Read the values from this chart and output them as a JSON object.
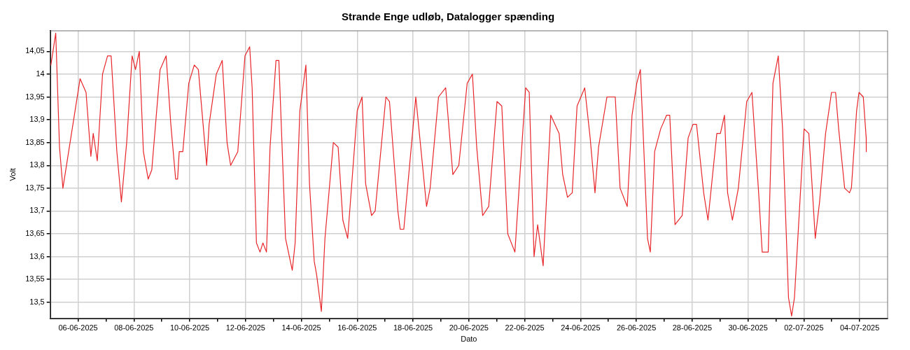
{
  "chart_data": {
    "type": "line",
    "title": "Strande Enge udløb, Datalogger spænding",
    "xlabel": "Dato",
    "ylabel": "Volt",
    "x": [
      "2025-06-05T00:36",
      "2025-06-05T04:45",
      "2025-06-05T08:00",
      "2025-06-05T10:55",
      "2025-06-06T01:42",
      "2025-06-06T06:49",
      "2025-06-06T10:57",
      "2025-06-06T13:00",
      "2025-06-06T16:29",
      "2025-06-06T21:00",
      "2025-06-07T01:18",
      "2025-06-07T04:23",
      "2025-06-07T09:19",
      "2025-06-07T13:12",
      "2025-06-07T17:45",
      "2025-06-07T22:26",
      "2025-06-08T01:20",
      "2025-06-08T04:36",
      "2025-06-08T08:07",
      "2025-06-08T12:15",
      "2025-06-08T15:20",
      "2025-06-08T22:29",
      "2025-06-09T03:40",
      "2025-06-09T07:43",
      "2025-06-09T11:51",
      "2025-06-09T13:31",
      "2025-06-09T14:56",
      "2025-06-09T18:01",
      "2025-06-09T23:08",
      "2025-06-10T03:53",
      "2025-06-10T07:23",
      "2025-06-10T11:27",
      "2025-06-10T14:32",
      "2025-06-10T16:38",
      "2025-06-10T22:48",
      "2025-06-11T03:55",
      "2025-06-11T08:03",
      "2025-06-11T11:08",
      "2025-06-11T17:17",
      "2025-06-11T23:27",
      "2025-06-12T03:31",
      "2025-06-12T05:37",
      "2025-06-12T09:19",
      "2025-06-12T12:24",
      "2025-06-12T14:52",
      "2025-06-12T17:57",
      "2025-06-12T21:02",
      "2025-06-13T02:08",
      "2025-06-13T04:36",
      "2025-06-13T10:20",
      "2025-06-13T16:08",
      "2025-06-13T18:36",
      "2025-06-13T22:40",
      "2025-06-14T03:51",
      "2025-06-14T06:56",
      "2025-06-14T11:00",
      "2025-06-14T13:05",
      "2025-06-14T17:09",
      "2025-06-14T20:14",
      "2025-06-15T03:26",
      "2025-06-15T07:34",
      "2025-06-15T11:38",
      "2025-06-15T15:46",
      "2025-06-16T00:00",
      "2025-06-16T04:07",
      "2025-06-16T07:12",
      "2025-06-16T12:19",
      "2025-06-16T15:24",
      "2025-06-17T00:38",
      "2025-06-17T03:43",
      "2025-06-17T10:56",
      "2025-06-17T12:57",
      "2025-06-17T16:02",
      "2025-06-18T02:20",
      "2025-06-18T11:35",
      "2025-06-18T14:40",
      "2025-06-18T21:52",
      "2025-06-19T04:02",
      "2025-06-19T10:12",
      "2025-06-19T15:19",
      "2025-06-19T22:31",
      "2025-06-20T03:01",
      "2025-06-20T06:43",
      "2025-06-20T11:50",
      "2025-06-20T17:01",
      "2025-06-21T00:10",
      "2025-06-21T04:17",
      "2025-06-21T09:24",
      "2025-06-21T15:33",
      "2025-06-22T00:48",
      "2025-06-22T03:53",
      "2025-06-22T08:01",
      "2025-06-22T11:06",
      "2025-06-22T15:50",
      "2025-06-22T22:22",
      "2025-06-23T05:34",
      "2025-06-23T08:39",
      "2025-06-23T12:47",
      "2025-06-23T16:51",
      "2025-06-23T21:00",
      "2025-06-24T03:35",
      "2025-06-24T08:16",
      "2025-06-24T12:24",
      "2025-06-24T15:29",
      "2025-06-24T22:41",
      "2025-06-25T05:50",
      "2025-06-25T10:00",
      "2025-06-25T16:08",
      "2025-06-25T20:16",
      "2025-06-26T00:20",
      "2025-06-26T03:25",
      "2025-06-26T05:31",
      "2025-06-26T09:35",
      "2025-06-26T12:00",
      "2025-06-26T15:42",
      "2025-06-26T20:53",
      "2025-06-27T02:00",
      "2025-06-27T04:41",
      "2025-06-27T09:13",
      "2025-06-27T15:23",
      "2025-06-27T20:30",
      "2025-06-28T00:38",
      "2025-06-28T03:43",
      "2025-06-28T09:52",
      "2025-06-28T13:34",
      "2025-06-28T21:10",
      "2025-06-29T00:14",
      "2025-06-29T03:46",
      "2025-06-29T06:26",
      "2025-06-29T10:34",
      "2025-06-29T15:40",
      "2025-06-29T22:52",
      "2025-06-30T03:22",
      "2025-06-30T09:07",
      "2025-06-30T12:11",
      "2025-06-30T17:22",
      "2025-06-30T21:26",
      "2025-07-01T02:00",
      "2025-07-01T05:42",
      "2025-07-01T10:48",
      "2025-07-01T13:28",
      "2025-07-01T15:55",
      "2025-07-02T00:11",
      "2025-07-02T04:16",
      "2025-07-02T06:44",
      "2025-07-02T09:49",
      "2025-07-02T13:31",
      "2025-07-02T18:40",
      "2025-07-02T23:47",
      "2025-07-03T03:17",
      "2025-07-03T05:56",
      "2025-07-03T11:05",
      "2025-07-03T15:13",
      "2025-07-03T16:52",
      "2025-07-03T21:22",
      "2025-07-03T23:24",
      "2025-07-04T03:06",
      "2025-07-04T05:36",
      "2025-07-04T05:40"
    ],
    "series": [
      {
        "color": "#e8262a",
        "values": [
          14.02,
          14.09,
          13.84,
          13.75,
          13.99,
          13.96,
          13.82,
          13.87,
          13.81,
          14.0,
          14.04,
          14.04,
          13.83,
          13.72,
          13.85,
          14.04,
          14.01,
          14.05,
          13.83,
          13.77,
          13.79,
          14.01,
          14.04,
          13.89,
          13.77,
          13.77,
          13.83,
          13.83,
          13.98,
          14.02,
          14.01,
          13.89,
          13.8,
          13.89,
          14.0,
          14.03,
          13.85,
          13.8,
          13.83,
          14.04,
          14.06,
          13.97,
          13.63,
          13.61,
          13.63,
          13.61,
          13.84,
          14.03,
          14.03,
          13.64,
          13.57,
          13.63,
          13.92,
          14.02,
          13.76,
          13.59,
          13.56,
          13.48,
          13.64,
          13.85,
          13.84,
          13.68,
          13.64,
          13.92,
          13.95,
          13.76,
          13.69,
          13.7,
          13.95,
          13.94,
          13.7,
          13.66,
          13.66,
          13.95,
          13.71,
          13.75,
          13.95,
          13.97,
          13.78,
          13.8,
          13.98,
          14.0,
          13.84,
          13.69,
          13.71,
          13.94,
          13.93,
          13.65,
          13.61,
          13.97,
          13.96,
          13.6,
          13.67,
          13.58,
          13.91,
          13.87,
          13.78,
          13.73,
          13.74,
          13.93,
          13.97,
          13.86,
          13.74,
          13.84,
          13.95,
          13.95,
          13.75,
          13.71,
          13.91,
          13.98,
          14.01,
          13.89,
          13.64,
          13.61,
          13.83,
          13.88,
          13.91,
          13.91,
          13.67,
          13.69,
          13.86,
          13.89,
          13.89,
          13.74,
          13.68,
          13.87,
          13.87,
          13.91,
          13.74,
          13.68,
          13.75,
          13.94,
          13.96,
          13.74,
          13.61,
          13.61,
          13.98,
          14.04,
          13.88,
          13.51,
          13.47,
          13.51,
          13.88,
          13.87,
          13.77,
          13.64,
          13.72,
          13.87,
          13.96,
          13.96,
          13.88,
          13.75,
          13.74,
          13.75,
          13.92,
          13.96,
          13.95,
          13.86,
          13.83
        ]
      }
    ],
    "xlim": [
      "2025-06-05",
      "2025-07-05"
    ],
    "xticks": [
      {
        "value": "2025-06-06",
        "label": "06-06-2025"
      },
      {
        "value": "2025-06-07",
        "label": null
      },
      {
        "value": "2025-06-08",
        "label": "08-06-2025"
      },
      {
        "value": "2025-06-09",
        "label": null
      },
      {
        "value": "2025-06-10",
        "label": "10-06-2025"
      },
      {
        "value": "2025-06-11",
        "label": null
      },
      {
        "value": "2025-06-12",
        "label": "12-06-2025"
      },
      {
        "value": "2025-06-13",
        "label": null
      },
      {
        "value": "2025-06-14",
        "label": "14-06-2025"
      },
      {
        "value": "2025-06-15",
        "label": null
      },
      {
        "value": "2025-06-16",
        "label": "16-06-2025"
      },
      {
        "value": "2025-06-17",
        "label": null
      },
      {
        "value": "2025-06-18",
        "label": "18-06-2025"
      },
      {
        "value": "2025-06-19",
        "label": null
      },
      {
        "value": "2025-06-20",
        "label": "20-06-2025"
      },
      {
        "value": "2025-06-21",
        "label": null
      },
      {
        "value": "2025-06-22",
        "label": "22-06-2025"
      },
      {
        "value": "2025-06-23",
        "label": null
      },
      {
        "value": "2025-06-24",
        "label": "24-06-2025"
      },
      {
        "value": "2025-06-25",
        "label": null
      },
      {
        "value": "2025-06-26",
        "label": "26-06-2025"
      },
      {
        "value": "2025-06-27",
        "label": null
      },
      {
        "value": "2025-06-28",
        "label": "28-06-2025"
      },
      {
        "value": "2025-06-29",
        "label": null
      },
      {
        "value": "2025-06-30",
        "label": "30-06-2025"
      },
      {
        "value": "2025-07-01",
        "label": null
      },
      {
        "value": "2025-07-02",
        "label": "02-07-2025"
      },
      {
        "value": "2025-07-03",
        "label": null
      },
      {
        "value": "2025-07-04",
        "label": "04-07-2025"
      }
    ],
    "ylim": [
      13.465,
      14.095
    ],
    "yticks": [
      {
        "value": 13.5,
        "label": "13,5"
      },
      {
        "value": 13.55,
        "label": "13,55"
      },
      {
        "value": 13.6,
        "label": "13,6"
      },
      {
        "value": 13.65,
        "label": "13,65"
      },
      {
        "value": 13.7,
        "label": "13,7"
      },
      {
        "value": 13.75,
        "label": "13,75"
      },
      {
        "value": 13.8,
        "label": "13,8"
      },
      {
        "value": 13.85,
        "label": "13,85"
      },
      {
        "value": 13.9,
        "label": "13,9"
      },
      {
        "value": 13.95,
        "label": "13,95"
      },
      {
        "value": 14,
        "label": "14"
      },
      {
        "value": 14.05,
        "label": "14,05"
      }
    ],
    "grid": true,
    "legend": false,
    "marker": "none",
    "line_style": "solid"
  }
}
